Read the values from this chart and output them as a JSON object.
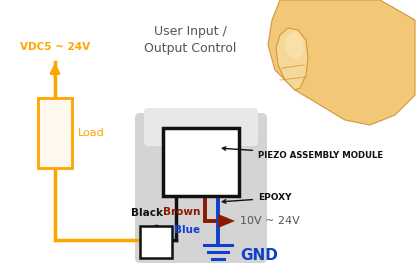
{
  "bg_color": "#ffffff",
  "orange_color": "#FFA500",
  "black_color": "#111111",
  "brown_color": "#8B1A00",
  "blue_color": "#1040CC",
  "dark_gray": "#555555",
  "module_color": "#d4d4d4",
  "module_inner": "#e8e8e8",
  "load_fill": "#fff8ee",
  "finger_skin": "#f2c878",
  "finger_skin2": "#f5d898",
  "finger_edge": "#d4963c",
  "label_user_input": "User Input /\nOutput Control",
  "label_vdc": "VDC5 ~ 24V",
  "label_load": "Load",
  "label_black": "Black",
  "label_brown": "Brown",
  "label_blue": "Blue",
  "label_piezo": "PIEZO ASSEMBLY MODULE",
  "label_epoxy": "EPOXY",
  "label_10v": "10V ~ 24V",
  "label_gnd": "GND"
}
